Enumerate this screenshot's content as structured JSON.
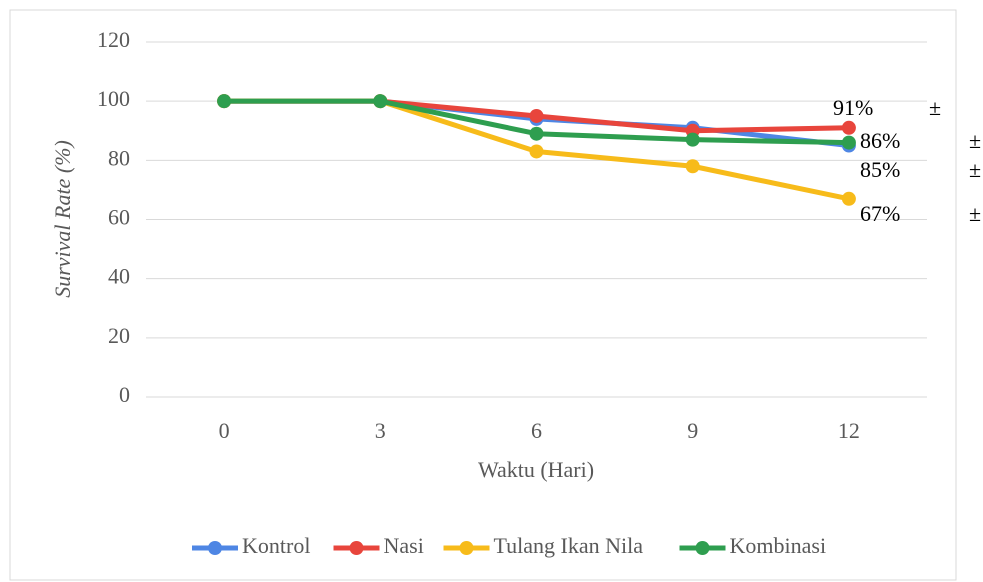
{
  "chart_data": {
    "type": "line",
    "xlabel": "Waktu (Hari)",
    "ylabel": "Survival Rate (%)",
    "categories": [
      "0",
      "3",
      "6",
      "9",
      "12"
    ],
    "series": [
      {
        "name": "Kontrol",
        "color": "#4e86e4",
        "values": [
          100,
          100,
          94,
          91,
          85
        ],
        "value_labels": [
          null,
          null,
          null,
          null,
          "85%"
        ],
        "label_note": "±"
      },
      {
        "name": "Nasi",
        "color": "#e8453c",
        "values": [
          100,
          100,
          95,
          90,
          91
        ],
        "value_labels": [
          null,
          null,
          null,
          null,
          "91%"
        ],
        "label_note": "±"
      },
      {
        "name": "Tulang Ikan Nila",
        "color": "#f7bb1a",
        "values": [
          100,
          100,
          83,
          78,
          67
        ],
        "value_labels": [
          null,
          null,
          null,
          null,
          "67%"
        ],
        "label_note": "±"
      },
      {
        "name": "Kombinasi",
        "color": "#2e9e4f",
        "values": [
          100,
          100,
          89,
          87,
          86
        ],
        "value_labels": [
          null,
          null,
          null,
          null,
          "86%"
        ],
        "label_note": "±"
      }
    ],
    "ylim": [
      0,
      120
    ],
    "yticks": [
      0,
      20,
      40,
      60,
      80,
      100,
      120
    ],
    "grid": true,
    "legend": "bottom"
  }
}
